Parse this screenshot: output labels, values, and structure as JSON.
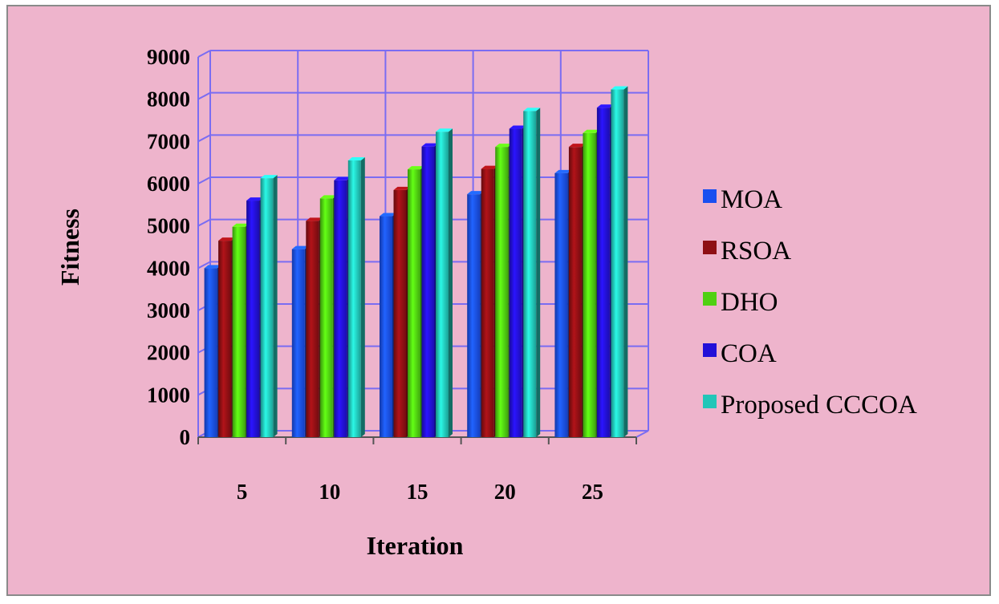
{
  "chart_data": {
    "type": "bar",
    "style": "3d-clustered",
    "xlabel": "Iteration",
    "ylabel": "Fitness",
    "categories": [
      "5",
      "10",
      "15",
      "20",
      "25"
    ],
    "yticks": [
      "0",
      "1000",
      "2000",
      "3000",
      "4000",
      "5000",
      "6000",
      "7000",
      "8000",
      "9000"
    ],
    "ylim": [
      0,
      9000
    ],
    "grid": true,
    "legend_position": "right",
    "series": [
      {
        "name": "MOA",
        "color": "#1a4ff0",
        "values": [
          4000,
          4450,
          5230,
          5750,
          6250
        ]
      },
      {
        "name": "RSOA",
        "color": "#8e0f14",
        "values": [
          4650,
          5120,
          5850,
          6350,
          6870
        ]
      },
      {
        "name": "DHO",
        "color": "#4fd011",
        "values": [
          4980,
          5650,
          6340,
          6870,
          7200
        ]
      },
      {
        "name": "COA",
        "color": "#2210d8",
        "values": [
          5600,
          6080,
          6880,
          7300,
          7800
        ]
      },
      {
        "name": "Proposed CCCOA",
        "color": "#22c6b8",
        "values": [
          6130,
          6550,
          7230,
          7720,
          8230
        ]
      }
    ]
  }
}
